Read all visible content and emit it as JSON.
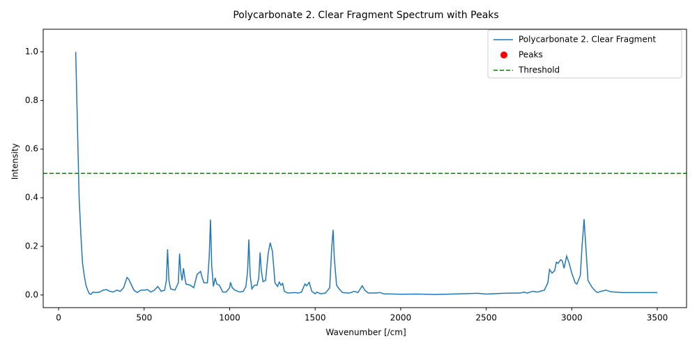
{
  "chart_data": {
    "type": "line",
    "title": "Polycarbonate 2. Clear Fragment Spectrum with Peaks",
    "x_label": "Wavenumber [/cm]",
    "y_label": "Intensity",
    "xlim": [
      -90,
      3671
    ],
    "ylim": [
      -0.052,
      1.093
    ],
    "xticks": [
      0,
      500,
      1000,
      1500,
      2000,
      2500,
      3000,
      3500
    ],
    "yticks": [
      {
        "value": 0,
        "label": "0.0"
      },
      0.2,
      0.4,
      0.6,
      0.8,
      {
        "value": 1,
        "label": "1.0"
      }
    ],
    "legend": "upper right",
    "series": [
      {
        "name": "Polycarbonate 2. Clear Fragment",
        "color": "#1f77b4",
        "x": [
          100,
          110,
          120,
          130,
          140,
          150,
          160,
          170,
          180,
          190,
          200,
          220,
          240,
          260,
          280,
          300,
          320,
          340,
          360,
          380,
          400,
          410,
          420,
          440,
          460,
          480,
          500,
          520,
          540,
          560,
          580,
          590,
          600,
          620,
          630,
          637,
          645,
          655,
          680,
          700,
          707,
          715,
          722,
          730,
          738,
          745,
          770,
          790,
          810,
          830,
          840,
          850,
          870,
          880,
          888,
          895,
          905,
          915,
          925,
          940,
          960,
          980,
          1000,
          1005,
          1015,
          1030,
          1060,
          1080,
          1095,
          1105,
          1112,
          1120,
          1130,
          1145,
          1160,
          1170,
          1178,
          1185,
          1195,
          1210,
          1225,
          1237,
          1250,
          1265,
          1280,
          1290,
          1300,
          1310,
          1320,
          1340,
          1380,
          1400,
          1420,
          1440,
          1450,
          1465,
          1480,
          1500,
          1510,
          1530,
          1560,
          1585,
          1597,
          1605,
          1612,
          1625,
          1640,
          1660,
          1700,
          1730,
          1750,
          1775,
          1790,
          1810,
          1850,
          1880,
          1900,
          2000,
          2100,
          2200,
          2300,
          2400,
          2450,
          2500,
          2600,
          2700,
          2720,
          2740,
          2770,
          2800,
          2840,
          2860,
          2870,
          2885,
          2900,
          2910,
          2920,
          2935,
          2945,
          2955,
          2970,
          2985,
          3000,
          3020,
          3030,
          3050,
          3060,
          3072,
          3082,
          3095,
          3120,
          3140,
          3150,
          3170,
          3200,
          3230,
          3300,
          3400,
          3500
        ],
        "values": [
          1.0,
          0.7,
          0.4,
          0.25,
          0.13,
          0.08,
          0.04,
          0.02,
          0.005,
          0.003,
          0.012,
          0.01,
          0.012,
          0.02,
          0.022,
          0.015,
          0.012,
          0.02,
          0.015,
          0.03,
          0.072,
          0.065,
          0.05,
          0.02,
          0.01,
          0.02,
          0.02,
          0.022,
          0.012,
          0.02,
          0.035,
          0.025,
          0.015,
          0.02,
          0.06,
          0.188,
          0.06,
          0.025,
          0.02,
          0.05,
          0.17,
          0.09,
          0.06,
          0.11,
          0.07,
          0.045,
          0.04,
          0.03,
          0.085,
          0.097,
          0.07,
          0.05,
          0.05,
          0.15,
          0.31,
          0.12,
          0.035,
          0.07,
          0.045,
          0.04,
          0.012,
          0.012,
          0.03,
          0.052,
          0.03,
          0.02,
          0.012,
          0.015,
          0.035,
          0.1,
          0.228,
          0.08,
          0.025,
          0.04,
          0.04,
          0.07,
          0.175,
          0.1,
          0.055,
          0.06,
          0.17,
          0.215,
          0.18,
          0.05,
          0.035,
          0.053,
          0.04,
          0.048,
          0.015,
          0.008,
          0.01,
          0.008,
          0.012,
          0.045,
          0.038,
          0.052,
          0.015,
          0.005,
          0.012,
          0.005,
          0.008,
          0.03,
          0.2,
          0.268,
          0.15,
          0.04,
          0.025,
          0.01,
          0.008,
          0.015,
          0.01,
          0.038,
          0.02,
          0.008,
          0.008,
          0.01,
          0.005,
          0.003,
          0.004,
          0.002,
          0.004,
          0.006,
          0.007,
          0.004,
          0.007,
          0.008,
          0.012,
          0.008,
          0.015,
          0.012,
          0.02,
          0.05,
          0.105,
          0.09,
          0.1,
          0.135,
          0.13,
          0.145,
          0.14,
          0.11,
          0.16,
          0.13,
          0.09,
          0.05,
          0.045,
          0.08,
          0.2,
          0.312,
          0.2,
          0.06,
          0.03,
          0.015,
          0.01,
          0.015,
          0.02,
          0.013,
          0.01,
          0.01,
          0.01
        ]
      },
      {
        "name": "Peaks",
        "color": "red",
        "marker": "dot",
        "x": [],
        "values": []
      },
      {
        "name": "Threshold",
        "color": "green",
        "dash": true,
        "hline": 0.5
      }
    ]
  }
}
